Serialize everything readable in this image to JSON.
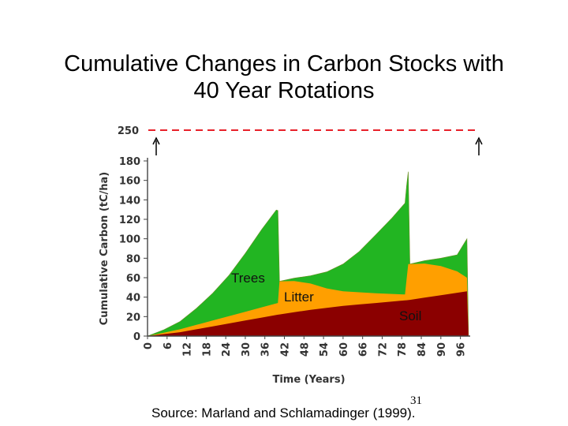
{
  "slide": {
    "title_line1": "Cumulative Changes in Carbon Stocks with",
    "title_line2": "40 Year Rotations",
    "source": "Source:  Marland and Schlamadinger (1999).",
    "page_number": "31"
  },
  "chart_data": {
    "type": "area",
    "title": "",
    "xlabel": "Time (Years)",
    "ylabel": "Cumulative Carbon (tC/ha)",
    "xlim": [
      0,
      99
    ],
    "ylim": [
      0,
      180
    ],
    "xticks": [
      0,
      6,
      12,
      18,
      24,
      30,
      36,
      42,
      48,
      54,
      60,
      66,
      72,
      78,
      84,
      90,
      96
    ],
    "yticks": [
      0,
      20,
      40,
      60,
      80,
      100,
      120,
      140,
      160,
      180
    ],
    "stacked": true,
    "grid": false,
    "legend": "none",
    "reference_line": {
      "value": 250,
      "label": "250",
      "style": "dashed",
      "color": "#e8212a"
    },
    "series": [
      {
        "name": "Soil",
        "color": "#8b0000",
        "x": [
          0,
          10,
          20,
          30,
          40,
          50,
          60,
          70,
          80,
          90,
          98,
          98.5
        ],
        "values": [
          0,
          4,
          10,
          16,
          22,
          27,
          31,
          34,
          37,
          42,
          46,
          0
        ]
      },
      {
        "name": "Litter",
        "color": "#ff9f00",
        "x": [
          0,
          10,
          20,
          30,
          40,
          40.5,
          45,
          50,
          55,
          60,
          70,
          79,
          80,
          85,
          90,
          95,
          98,
          98.5
        ],
        "values": [
          0,
          3,
          6,
          9,
          12,
          34,
          32,
          27,
          20,
          15,
          10,
          6,
          37,
          35,
          30,
          22,
          14,
          0
        ]
      },
      {
        "name": "Trees",
        "color": "#22b522",
        "x": [
          0,
          5,
          10,
          15,
          20,
          25,
          30,
          35,
          39.5,
          40,
          40.5,
          45,
          50,
          55,
          60,
          65,
          70,
          75,
          79.5,
          80,
          80.5,
          85,
          90,
          95,
          98,
          98.5
        ],
        "values": [
          0,
          3,
          8,
          17,
          28,
          42,
          60,
          80,
          96,
          95,
          0,
          3,
          8,
          17,
          28,
          42,
          60,
          78,
          96,
          95,
          0,
          3,
          8,
          17,
          40,
          0
        ]
      }
    ],
    "annotations": [
      "Trees",
      "Litter",
      "Soil"
    ]
  }
}
